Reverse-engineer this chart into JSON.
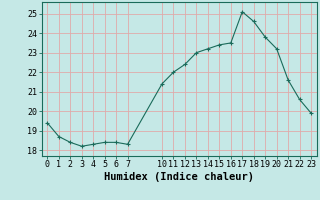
{
  "x": [
    0,
    1,
    2,
    3,
    4,
    5,
    6,
    7,
    10,
    11,
    12,
    13,
    14,
    15,
    16,
    17,
    18,
    19,
    20,
    21,
    22,
    23
  ],
  "y": [
    19.4,
    18.7,
    18.4,
    18.2,
    18.3,
    18.4,
    18.4,
    18.3,
    21.4,
    22.0,
    22.4,
    23.0,
    23.2,
    23.4,
    23.5,
    25.1,
    24.6,
    23.8,
    23.2,
    21.6,
    20.6,
    19.9
  ],
  "line_color": "#1a6b5a",
  "marker": "+",
  "marker_size": 3,
  "bg_color": "#c5e8e6",
  "grid_color": "#e0aaaa",
  "xlabel": "Humidex (Indice chaleur)",
  "ylabel_ticks": [
    18,
    19,
    20,
    21,
    22,
    23,
    24,
    25
  ],
  "xlim": [
    -0.5,
    23.5
  ],
  "ylim": [
    17.7,
    25.6
  ],
  "xticks": [
    0,
    1,
    2,
    3,
    4,
    5,
    6,
    7,
    10,
    11,
    12,
    13,
    14,
    15,
    16,
    17,
    18,
    19,
    20,
    21,
    22,
    23
  ],
  "tick_fontsize": 6,
  "label_fontsize": 7.5
}
